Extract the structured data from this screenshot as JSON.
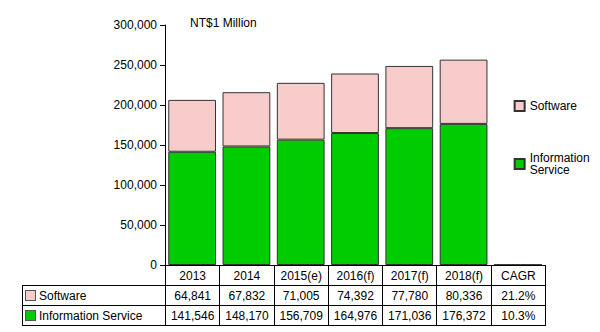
{
  "chart_data": {
    "type": "bar",
    "title": "NT$1 Million",
    "categories": [
      "2013",
      "2014",
      "2015(e)",
      "2016(f)",
      "2017(f)",
      "2018(f)",
      "CAGR"
    ],
    "series": [
      {
        "name": "Software",
        "color": "#f9cccc",
        "values": [
          64841,
          67832,
          71005,
          74392,
          77780,
          80336,
          21.2
        ],
        "value_labels": [
          "64,841",
          "67,832",
          "71,005",
          "74,392",
          "77,780",
          "80,336",
          "21.2%"
        ]
      },
      {
        "name": "Information Service",
        "color": "#00cc00",
        "values": [
          141546,
          148170,
          156709,
          164976,
          171036,
          176372,
          10.3
        ],
        "value_labels": [
          "141,546",
          "148,170",
          "156,709",
          "164,976",
          "171,036",
          "176,372",
          "10.3%"
        ]
      }
    ],
    "stacked": true,
    "ylim": [
      0,
      300000
    ],
    "yticks": [
      {
        "value": 0,
        "label": "0"
      },
      {
        "value": 50000,
        "label": "50,000"
      },
      {
        "value": 100000,
        "label": "100,000"
      },
      {
        "value": 150000,
        "label": "150,000"
      },
      {
        "value": 200000,
        "label": "200,000"
      },
      {
        "value": 250000,
        "label": "250,000"
      },
      {
        "value": 300000,
        "label": "300,000"
      }
    ],
    "grid": false,
    "legend": "right"
  }
}
